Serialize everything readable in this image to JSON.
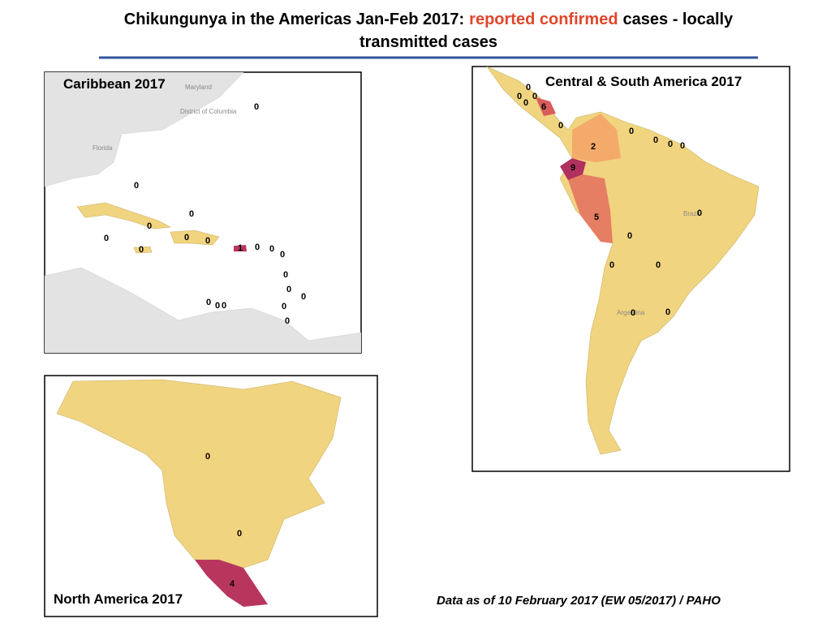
{
  "title": {
    "lead": "Chikungunya in the Americas Jan-Feb 2017:",
    "highlight": "reported confirmed",
    "tail": "cases - locally",
    "line2": "transmitted cases"
  },
  "maps": [
    {
      "title": "Caribbean 2017",
      "place_labels": [
        "Maryland",
        "District of Columbia",
        "Florida"
      ],
      "counts": [
        0,
        0,
        0,
        0,
        0,
        0,
        0,
        0,
        1,
        0,
        0,
        0,
        0,
        0,
        0,
        0,
        0,
        0,
        0,
        0
      ]
    },
    {
      "title": "Central & South America  2017",
      "place_labels": [
        "Brazil",
        "Argentina"
      ],
      "counts": [
        0,
        0,
        0,
        0,
        6,
        0,
        0,
        0,
        0,
        0,
        2,
        9,
        0,
        5,
        0,
        0,
        0,
        0,
        0
      ]
    },
    {
      "title": "North America 2017",
      "place_labels": [],
      "counts": [
        0,
        0,
        4
      ]
    }
  ],
  "source": "Data as of 10 February 2017 (EW 05/2017) / PAHO"
}
